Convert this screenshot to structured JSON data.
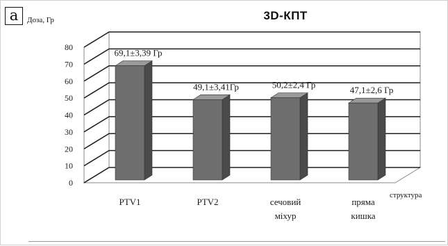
{
  "panel_label": "a",
  "chart_data": {
    "type": "bar",
    "title": "3D-КПТ",
    "ylabel": "Доза, Гр",
    "xlabel": "структура",
    "ylim": [
      0,
      80
    ],
    "ytick_step": 10,
    "grid": true,
    "three_d": true,
    "categories": [
      [
        "PTV1"
      ],
      [
        "PTV2"
      ],
      [
        "сечовий",
        "міхур"
      ],
      [
        "пряма",
        "кишка"
      ]
    ],
    "values": [
      69.1,
      49.1,
      50.2,
      47.1
    ],
    "data_labels": [
      "69,1±3,39 Гр",
      "49,1±3,41Гр",
      "50,2±2,4 Гр",
      "47,1±2,6 Гр"
    ],
    "colors": {
      "bar_front": "#6e6e6e",
      "bar_side": "#4a4a4a",
      "bar_top": "#9a9a9a",
      "grid": "#1f1f1f",
      "wall": "#8a8a8a"
    }
  }
}
